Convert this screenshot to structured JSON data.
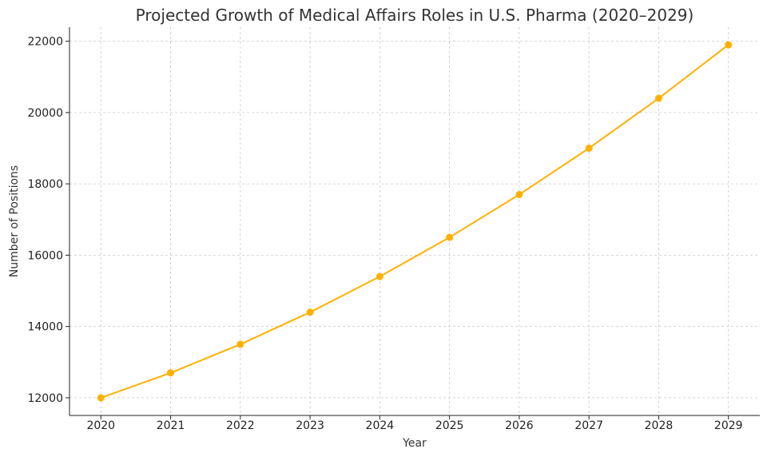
{
  "chart_data": {
    "type": "line",
    "title": "Projected Growth of Medical Affairs Roles in U.S. Pharma (2020–2029)",
    "xlabel": "Year",
    "ylabel": "Number of Positions",
    "x": [
      2020,
      2021,
      2022,
      2023,
      2024,
      2025,
      2026,
      2027,
      2028,
      2029
    ],
    "x_tick_labels": [
      "2020",
      "2021",
      "2022",
      "2023",
      "2024",
      "2025",
      "2026",
      "2027",
      "2028",
      "2029"
    ],
    "series": [
      {
        "values": [
          12000,
          12700,
          13500,
          14400,
          15400,
          16500,
          17700,
          19000,
          20400,
          21900
        ],
        "color": "#FFB000",
        "marker": "circle"
      }
    ],
    "xlim": [
      2019.55,
      2029.45
    ],
    "ylim": [
      11505,
      22395
    ],
    "y_ticks": [
      12000,
      14000,
      16000,
      18000,
      20000,
      22000
    ],
    "y_tick_labels": [
      "12000",
      "14000",
      "16000",
      "18000",
      "20000",
      "22000"
    ],
    "grid": true,
    "grid_style": "dashed",
    "legend": "none"
  }
}
